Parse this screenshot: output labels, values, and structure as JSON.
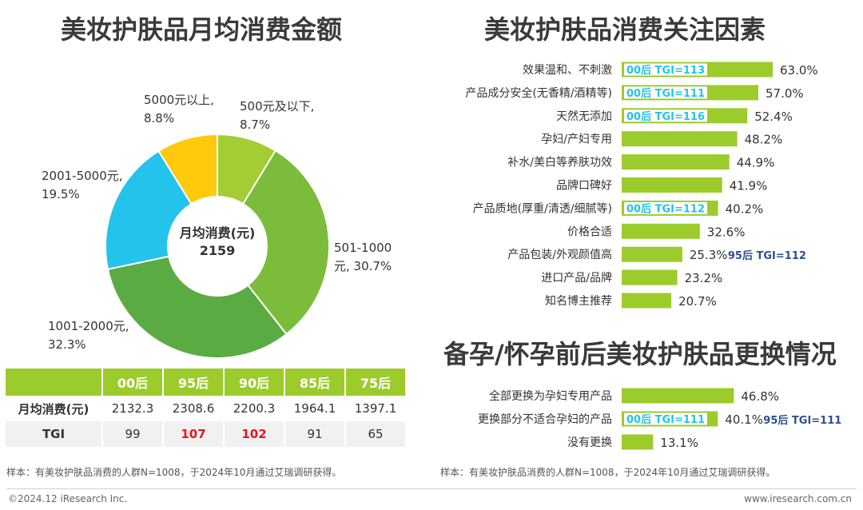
{
  "left_title": "美妆护肤品月均消费金额",
  "right_title_1": "美妆护肤品消费关注因素",
  "right_title_2": "备孕/怀孕前后美妆护肤品更换情况",
  "colors": {
    "green_light": "#a3cd33",
    "green_mid": "#7bbd3b",
    "green_dark": "#5bab43",
    "blue": "#23c3ec",
    "yellow": "#ffc90c",
    "bar": "#9ccb2c",
    "tgi_text": "#23c3ec",
    "tgi_navy": "#2f4f8f",
    "red": "#e8161c"
  },
  "donut": {
    "center_line1": "月均消费(元)",
    "center_line2": "2159"
  },
  "table": {
    "headers": [
      "",
      "00后",
      "95后",
      "90后",
      "85后",
      "75后"
    ],
    "rows": [
      {
        "label": "月均消费(元)",
        "cells": [
          "2132.3",
          "2308.6",
          "2200.3",
          "1964.1",
          "1397.1"
        ]
      },
      {
        "label": "TGI",
        "cells": [
          "99",
          "107",
          "102",
          "91",
          "65"
        ],
        "highlight": [
          false,
          true,
          true,
          false,
          false
        ]
      }
    ]
  },
  "left_note": "样本：有美妆护肤品消费的人群N=1008，于2024年10月通过艾瑞调研获得。",
  "right_note": "样本：有美妆护肤品消费的人群N=1008，于2024年10月通过艾瑞调研获得。",
  "footer_left": "©2024.12 iResearch Inc.",
  "footer_right": "www.iresearch.com.cn",
  "chart_data": [
    {
      "type": "pie",
      "title": "美妆护肤品月均消费金额",
      "categories": [
        "500元及以下",
        "501-1000元",
        "1001-2000元",
        "2001-5000元",
        "5000元以上"
      ],
      "values": [
        8.7,
        30.7,
        32.3,
        19.5,
        8.8
      ],
      "labels": [
        [
          "500元及以下,",
          "8.7%"
        ],
        [
          "501-1000",
          "元, 30.7%"
        ],
        [
          "1001-2000元,",
          "32.3%"
        ],
        [
          "2001-5000元,",
          "19.5%"
        ],
        [
          "5000元以上,",
          "8.8%"
        ]
      ],
      "colors": [
        "#a3cd33",
        "#7bbd3b",
        "#5bab43",
        "#23c3ec",
        "#ffc90c"
      ]
    },
    {
      "type": "bar",
      "title": "美妆护肤品消费关注因素",
      "categories": [
        "效果温和、不刺激",
        "产品成分安全(无香精/酒精等)",
        "天然无添加",
        "孕妇/产妇专用",
        "补水/美白等养肤功效",
        "品牌口碑好",
        "产品质地(厚重/清透/细腻等)",
        "价格合适",
        "产品包装/外观颜值高",
        "进口产品/品牌",
        "知名博主推荐"
      ],
      "values": [
        63.0,
        57.0,
        52.4,
        48.2,
        44.9,
        41.9,
        40.2,
        32.6,
        25.3,
        23.2,
        20.7
      ],
      "value_labels": [
        "63.0%",
        "57.0%",
        "52.4%",
        "48.2%",
        "44.9%",
        "41.9%",
        "40.2%",
        "32.6%",
        "25.3%",
        "23.2%",
        "20.7%"
      ],
      "annotations_in_bar": [
        "00后 TGI=113",
        "00后 TGI=111",
        "00后 TGI=116",
        "",
        "",
        "",
        "00后 TGI=112",
        "",
        "",
        "",
        ""
      ],
      "annotations_after": [
        "",
        "",
        "",
        "",
        "",
        "",
        "",
        "",
        "95后 TGI=112",
        "",
        ""
      ]
    },
    {
      "type": "bar",
      "title": "备孕/怀孕前后美妆护肤品更换情况",
      "categories": [
        "全部更换为孕妇专用产品",
        "更换部分不适合孕妇的产品",
        "没有更换"
      ],
      "values": [
        46.8,
        40.1,
        13.1
      ],
      "value_labels": [
        "46.8%",
        "40.1%",
        "13.1%"
      ],
      "annotations_in_bar": [
        "",
        "00后 TGI=111",
        ""
      ],
      "annotations_after": [
        "",
        "95后 TGI=111",
        ""
      ]
    }
  ]
}
